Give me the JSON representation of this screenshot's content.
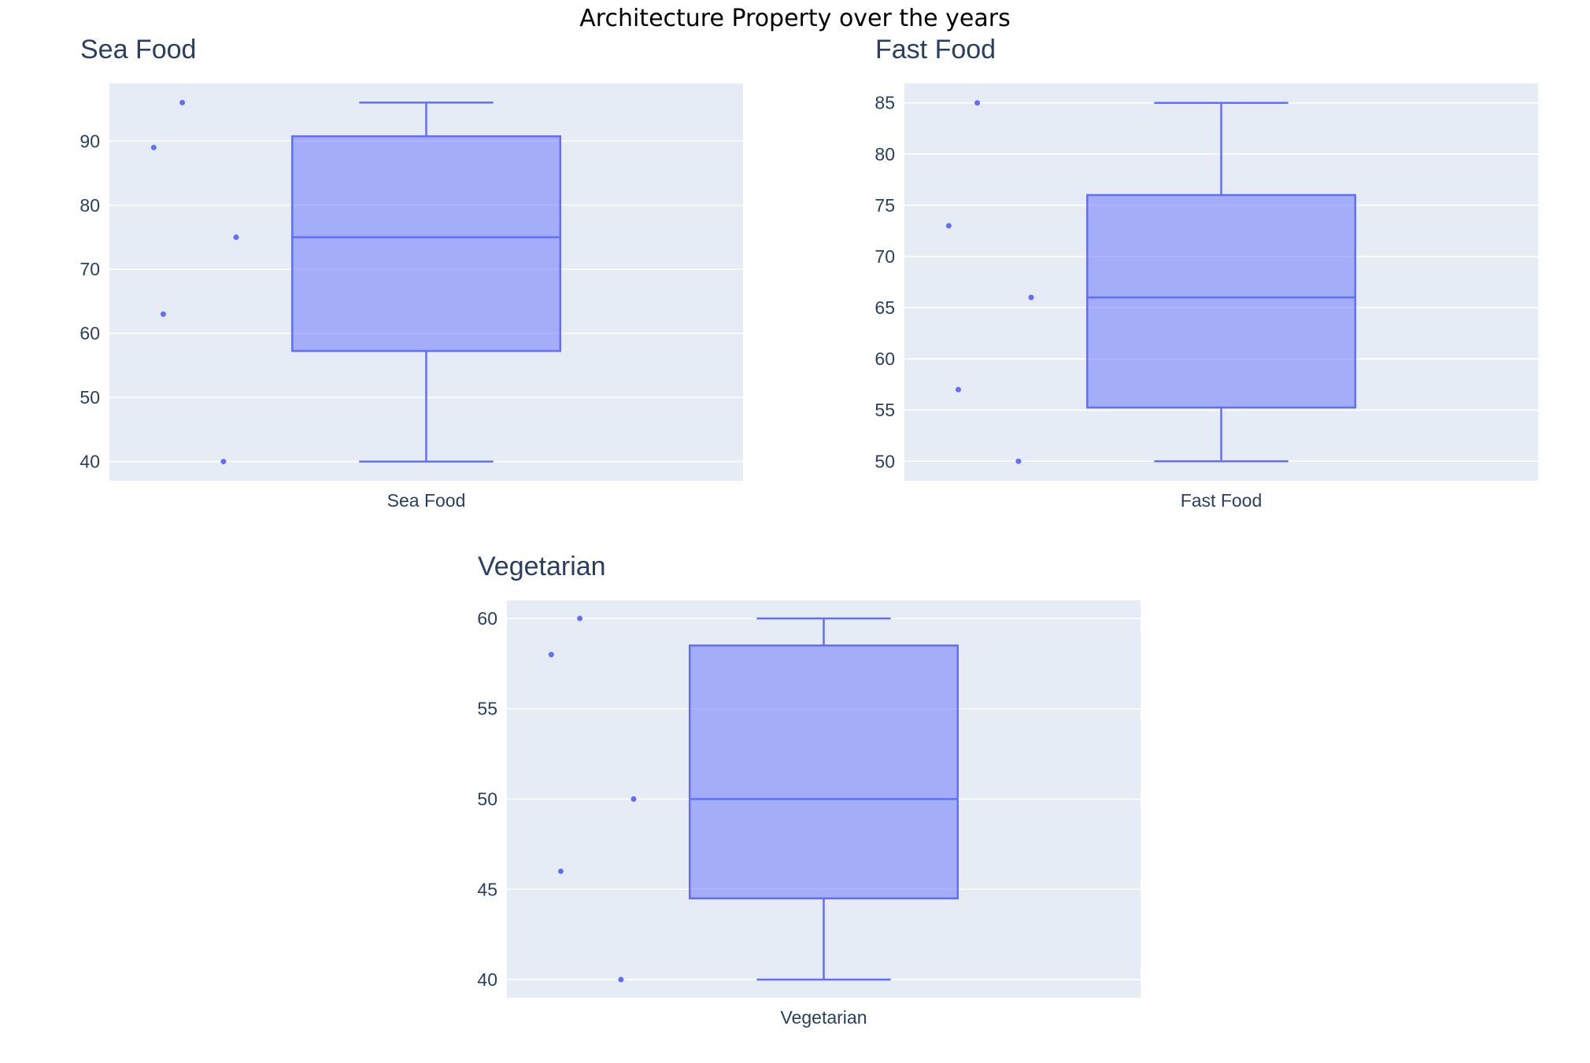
{
  "title": "Architecture Property over the years",
  "colors": {
    "plot_background": "#e5ecf6",
    "box_line": "#636efa",
    "box_fill": "rgba(99,110,250,0.5)",
    "text": "#2a3f5f"
  },
  "chart_data": [
    {
      "type": "box",
      "title": "Sea Food",
      "category": "Sea Food",
      "points": [
        89,
        63,
        96,
        40,
        75
      ],
      "box": {
        "min": 40,
        "q1": 57.25,
        "median": 75,
        "q3": 90.75,
        "max": 96
      },
      "ylim": [
        37,
        99
      ],
      "yticks": [
        40,
        50,
        60,
        70,
        80,
        90
      ],
      "grid": true
    },
    {
      "type": "box",
      "title": "Fast Food",
      "category": "Fast Food",
      "points": [
        73,
        57,
        85,
        50,
        66
      ],
      "box": {
        "min": 50,
        "q1": 55.25,
        "median": 66,
        "q3": 76,
        "max": 85
      },
      "ylim": [
        48.1,
        86.9
      ],
      "yticks": [
        50,
        55,
        60,
        65,
        70,
        75,
        80,
        85
      ],
      "grid": true
    },
    {
      "type": "box",
      "title": "Vegetarian",
      "category": "Vegetarian",
      "points": [
        58,
        46,
        60,
        40,
        50
      ],
      "box": {
        "min": 40,
        "q1": 44.5,
        "median": 50,
        "q3": 58.5,
        "max": 60
      },
      "ylim": [
        39,
        61
      ],
      "yticks": [
        40,
        45,
        50,
        55,
        60
      ],
      "grid": true
    }
  ]
}
